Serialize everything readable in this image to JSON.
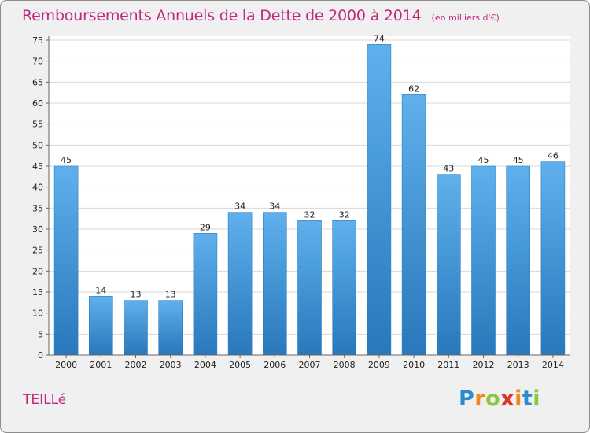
{
  "header": {
    "title": "Remboursements Annuels de la Dette de 2000 à 2014",
    "unit_note": "(en milliers d'€)"
  },
  "footer": {
    "commune": "TEILLé",
    "brand": {
      "letters": [
        "P",
        "r",
        "o",
        "x",
        "i",
        "t",
        "i"
      ],
      "colors": [
        "#2a8cd0",
        "#f08a1d",
        "#8cc63f",
        "#e2312d",
        "#f08a1d",
        "#2a8cd0",
        "#8cc63f"
      ]
    }
  },
  "chart_data": {
    "type": "bar",
    "categories": [
      "2000",
      "2001",
      "2002",
      "2003",
      "2004",
      "2005",
      "2006",
      "2007",
      "2008",
      "2009",
      "2010",
      "2011",
      "2012",
      "2013",
      "2014"
    ],
    "values": [
      45,
      14,
      13,
      13,
      29,
      34,
      34,
      32,
      32,
      74,
      62,
      43,
      45,
      45,
      46
    ],
    "title": "Remboursements Annuels de la Dette de 2000 à 2014",
    "xlabel": "",
    "ylabel": "",
    "ylim": [
      0,
      75
    ],
    "yticks": [
      0,
      5,
      10,
      15,
      20,
      25,
      30,
      35,
      40,
      45,
      50,
      55,
      60,
      65,
      70,
      75
    ],
    "grid": true,
    "data_labels": true,
    "bar_color": "#4a9fe0",
    "bar_color_dark": "#2a7fc4"
  }
}
